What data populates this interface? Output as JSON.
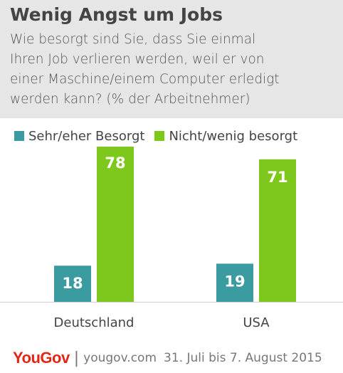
{
  "header": {
    "title": "Wenig Angst um Jobs",
    "subtitle_lines": [
      "Wie besorgt sind Sie, dass Sie einmal",
      "Ihren Job verlieren werden, weil er von",
      "einer Maschine/einem Computer erledigt",
      "werden kann?  (% der Arbeitnehmer)"
    ]
  },
  "chart_data": {
    "type": "bar",
    "categories": [
      "Deutschland",
      "USA"
    ],
    "series": [
      {
        "name": "Sehr/eher Besorgt",
        "values": [
          18,
          19
        ],
        "color": "#3a9ba0"
      },
      {
        "name": "Nicht/wenig besorgt",
        "values": [
          78,
          71
        ],
        "color": "#7ec81e"
      }
    ],
    "ylim": [
      0,
      80
    ],
    "grid": false,
    "legend_position": "top-left",
    "data_labels": true
  },
  "footer": {
    "brand": "YouGov",
    "separator": "|",
    "url": "yougov.com",
    "date": "31. Juli bis 7. August 2015"
  }
}
